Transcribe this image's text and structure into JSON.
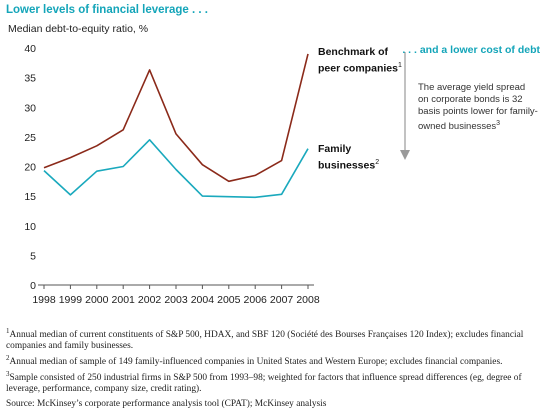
{
  "chart_data": {
    "type": "line",
    "title": "Lower levels of financial leverage . . .",
    "ylabel": "Median debt-to-equity ratio, %",
    "categories": [
      "1998",
      "1999",
      "2000",
      "2001",
      "2002",
      "2003",
      "2004",
      "2005",
      "2006",
      "2007",
      "2008"
    ],
    "ylim": [
      0,
      40
    ],
    "yticks": [
      0,
      5,
      10,
      15,
      20,
      25,
      30,
      35,
      40
    ],
    "grid": false,
    "series": [
      {
        "name": "Benchmark of peer companies",
        "footnote": "1",
        "color": "#8b2a1a",
        "values": [
          19.8,
          21.5,
          23.5,
          26.2,
          36.3,
          25.5,
          20.3,
          17.5,
          18.5,
          21.0,
          39.0
        ]
      },
      {
        "name": "Family businesses",
        "footnote": "2",
        "color": "#1aa9bd",
        "values": [
          19.3,
          15.2,
          19.2,
          20.0,
          24.5,
          19.5,
          15.0,
          14.9,
          14.8,
          15.3,
          23.0
        ]
      }
    ]
  },
  "right_panel": {
    "heading": ". . . and a lower cost of debt",
    "text": "The average yield spread on corporate bonds is 32 basis points lower for family-owned businesses",
    "footnote": "3"
  },
  "notes": [
    {
      "sup": "1",
      "text": "Annual median of current constituents of S&P 500, HDAX, and SBF 120 (Société des Bourses Françaises 120 Index); excludes financial companies and family businesses."
    },
    {
      "sup": "2",
      "text": "Annual median of sample of 149 family-influenced companies in United States and Western Europe; excludes financial companies."
    },
    {
      "sup": "3",
      "text": "Sample consisted of 250 industrial firms in S&P 500 from 1993–98; weighted for factors that influence spread differences (eg, degree of leverage, performance, company size, credit rating)."
    }
  ],
  "source": "Source: McKinsey’s corporate performance analysis tool (CPAT); McKinsey analysis",
  "colors": {
    "accent": "#14a5b9",
    "arrow": "#9a9a9a"
  }
}
